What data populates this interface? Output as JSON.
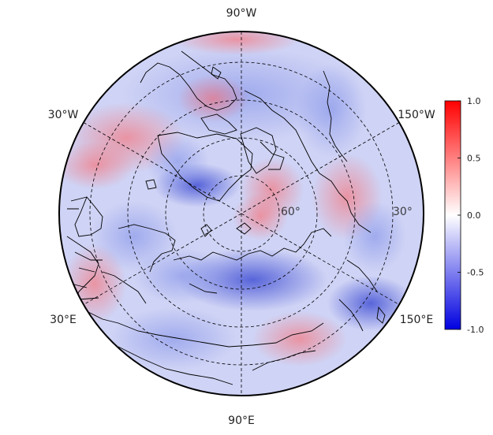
{
  "map": {
    "projection": "north-polar-stereographic",
    "colormap": "bwr",
    "colors": {
      "negative": "#0000e0",
      "zero": "#ffffff",
      "positive": "#ff0000"
    },
    "longitude_labels": [
      {
        "key": "90w",
        "text": "90°W"
      },
      {
        "key": "30w",
        "text": "30°W"
      },
      {
        "key": "150w",
        "text": "150°W"
      },
      {
        "key": "30e",
        "text": "30°E"
      },
      {
        "key": "150e",
        "text": "150°E"
      },
      {
        "key": "90e",
        "text": "90°E"
      }
    ],
    "latitude_labels": [
      "60°",
      "30°"
    ]
  },
  "colorbar": {
    "min": -1.0,
    "max": 1.0,
    "tick_labels": [
      "1.0",
      "0.5",
      "0.0",
      "-0.5",
      "-1.0"
    ]
  }
}
